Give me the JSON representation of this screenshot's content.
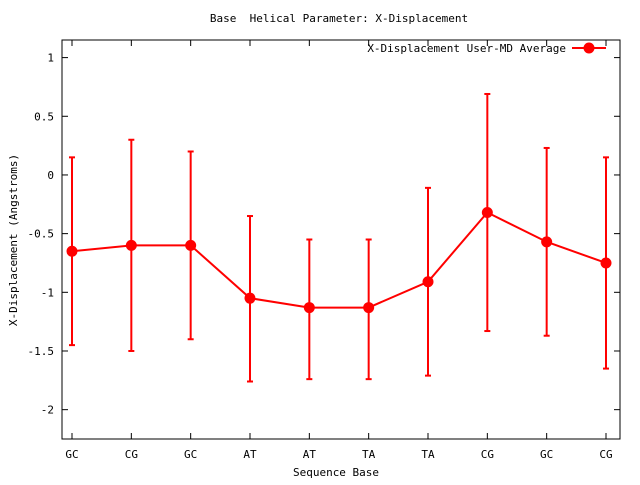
{
  "chart_data": {
    "type": "line",
    "title": "Base  Helical Parameter: X-Displacement",
    "xlabel": "Sequence Base",
    "ylabel": "X-Displacement (Angstroms)",
    "categories": [
      "GC",
      "CG",
      "GC",
      "AT",
      "AT",
      "TA",
      "TA",
      "CG",
      "GC",
      "CG"
    ],
    "ylim": [
      -2.25,
      1.15
    ],
    "yticks": [
      -2,
      -1.5,
      -1,
      -0.5,
      0,
      0.5,
      1
    ],
    "ytick_labels": [
      "-2",
      "-1.5",
      "-1",
      "-0.5",
      "0",
      "0.5",
      "1"
    ],
    "grid": false,
    "legend_position": "top-right",
    "series": [
      {
        "name": "X-Displacement User-MD Average",
        "color": "#ff0000",
        "values": [
          -0.65,
          -0.6,
          -0.6,
          -1.05,
          -1.13,
          -1.13,
          -0.91,
          -0.32,
          -0.57,
          -0.75
        ],
        "error_low": [
          -1.45,
          -1.5,
          -1.4,
          -1.76,
          -1.74,
          -1.74,
          -1.71,
          -1.33,
          -1.37,
          -1.65
        ],
        "error_high": [
          0.15,
          0.3,
          0.2,
          -0.35,
          -0.55,
          -0.55,
          -0.11,
          0.69,
          0.23,
          0.15
        ]
      }
    ]
  }
}
